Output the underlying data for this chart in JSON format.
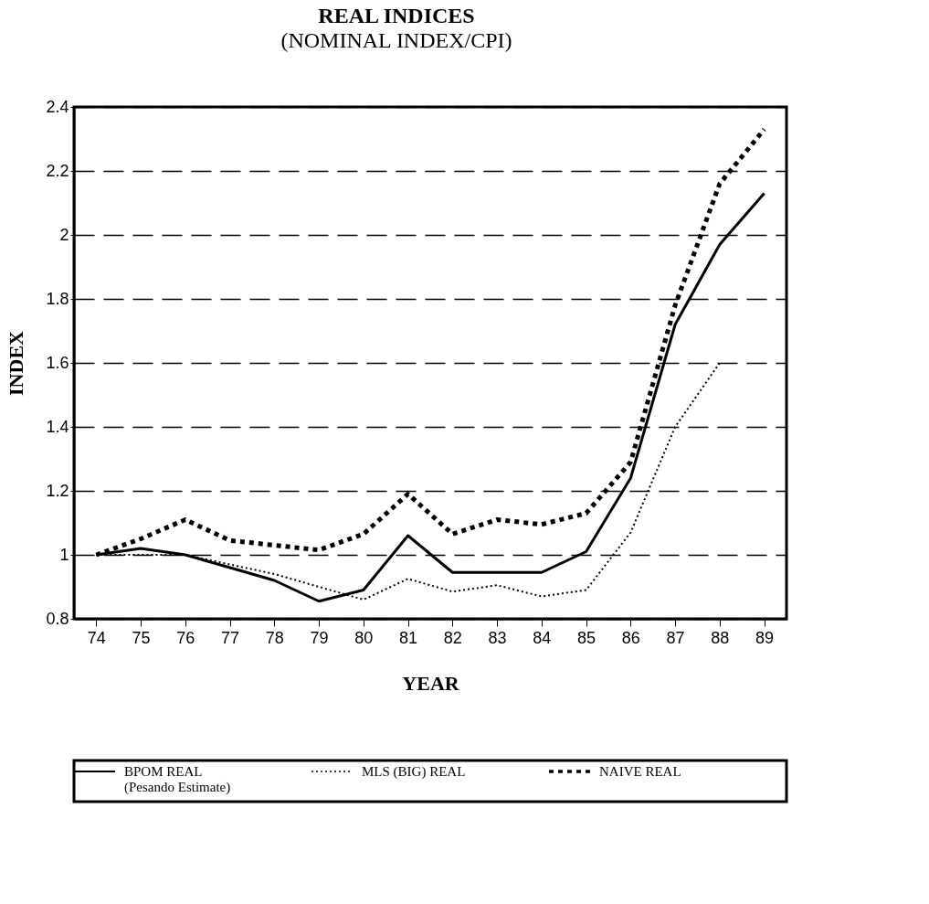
{
  "chart_data": {
    "type": "line",
    "title": "REAL INDICES",
    "subtitle": "(NOMINAL INDEX/CPI)",
    "xlabel": "YEAR",
    "ylabel": "INDEX",
    "categories": [
      "74",
      "75",
      "76",
      "77",
      "78",
      "79",
      "80",
      "81",
      "82",
      "83",
      "84",
      "85",
      "86",
      "87",
      "88",
      "89"
    ],
    "series": [
      {
        "name": "BPOM REAL\n(Pesando Estimate)",
        "color": "#000000",
        "line_style": "solid",
        "values": [
          1.0,
          1.02,
          1.0,
          0.96,
          0.92,
          0.855,
          0.89,
          1.06,
          0.945,
          0.945,
          0.945,
          1.01,
          1.24,
          1.72,
          1.97,
          2.13
        ]
      },
      {
        "name": "MLS (BIG) REAL",
        "color": "#000000",
        "line_style": "dotted",
        "values": [
          1.0,
          1.0,
          1.0,
          0.97,
          0.94,
          0.9,
          0.86,
          0.925,
          0.885,
          0.905,
          0.87,
          0.89,
          1.07,
          1.4,
          1.6,
          null
        ]
      },
      {
        "name": "NAIVE REAL",
        "color": "#000000",
        "line_style": "dashed",
        "values": [
          1.0,
          1.05,
          1.11,
          1.045,
          1.03,
          1.015,
          1.065,
          1.19,
          1.065,
          1.11,
          1.095,
          1.13,
          1.29,
          1.78,
          2.16,
          2.33
        ]
      }
    ],
    "ylim": [
      0.8,
      2.4
    ],
    "yticks": [
      0.8,
      1,
      1.2,
      1.4,
      1.6,
      1.8,
      2,
      2.2,
      2.4
    ],
    "grid": "y",
    "legend": "bottom",
    "marker": "none"
  }
}
